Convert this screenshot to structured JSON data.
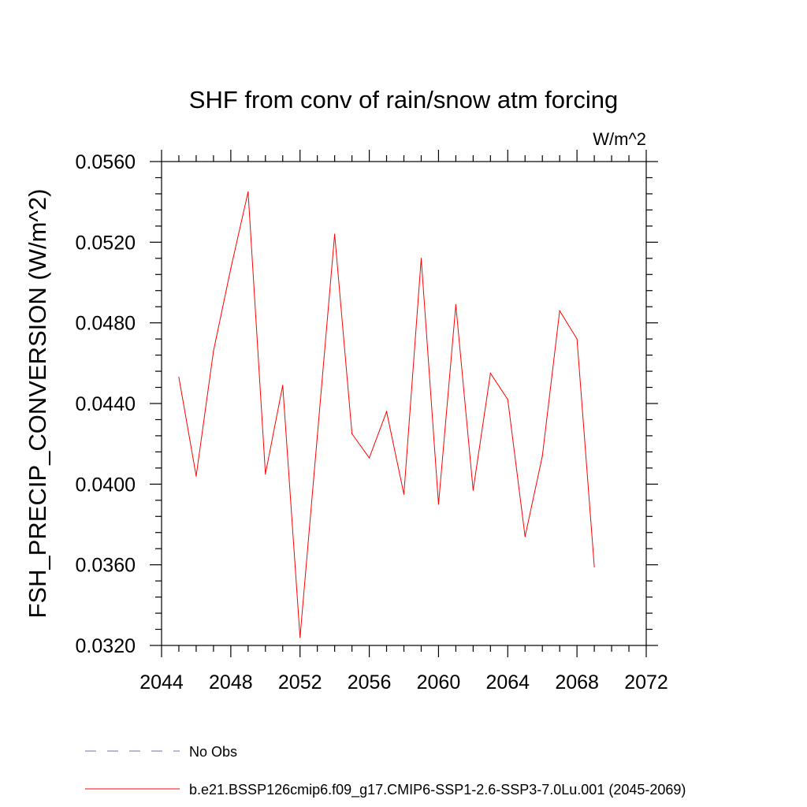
{
  "chart_data": {
    "type": "line",
    "title": "SHF from conv of rain/snow atm forcing",
    "units": "W/m^2",
    "ylabel": "FSH_PRECIP_CONVERSION  (W/m^2)",
    "xlabel": "",
    "xlim": [
      2044,
      2072
    ],
    "ylim": [
      0.032,
      0.056
    ],
    "xticks": [
      "2044",
      "2048",
      "2052",
      "2056",
      "2060",
      "2064",
      "2068",
      "2072"
    ],
    "yticks": [
      "0.0320",
      "0.0360",
      "0.0400",
      "0.0440",
      "0.0480",
      "0.0520",
      "0.0560"
    ],
    "grid": false,
    "legend_position": "bottom",
    "series": [
      {
        "name": "b.e21.BSSP126cmip6.f09_g17.CMIP6-SSP1-2.6-SSP3-7.0Lu.001 (2045-2069)",
        "color": "#ff0000",
        "style": "solid",
        "x": [
          2045,
          2046,
          2047,
          2048,
          2049,
          2050,
          2051,
          2052,
          2053,
          2054,
          2055,
          2056,
          2057,
          2058,
          2059,
          2060,
          2061,
          2062,
          2063,
          2064,
          2065,
          2066,
          2067,
          2068,
          2069
        ],
        "y": [
          0.0453,
          0.0404,
          0.0466,
          0.0507,
          0.0545,
          0.0405,
          0.0449,
          0.0324,
          0.0424,
          0.0524,
          0.0425,
          0.0413,
          0.0436,
          0.0395,
          0.0512,
          0.039,
          0.0489,
          0.0397,
          0.0455,
          0.0442,
          0.0374,
          0.0414,
          0.0486,
          0.0472,
          0.0359
        ]
      }
    ],
    "legend": [
      {
        "label": "No Obs",
        "color": "#7b68b0",
        "style": "dashed"
      },
      {
        "label": "b.e21.BSSP126cmip6.f09_g17.CMIP6-SSP1-2.6-SSP3-7.0Lu.001 (2045-2069)",
        "color": "#ff0000",
        "style": "solid"
      }
    ]
  }
}
